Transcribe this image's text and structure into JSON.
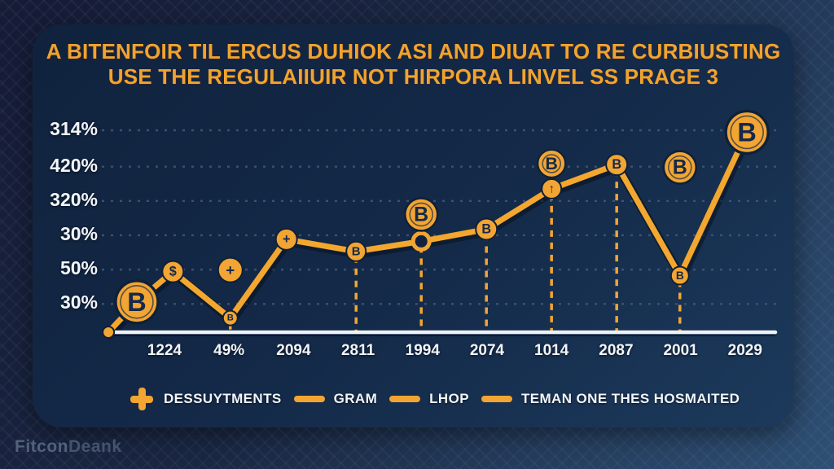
{
  "title": {
    "line1": "A BITENFOIR TIL ERCUS DUHIOK ASI AND DIUAT TO RE CURBIUSTING",
    "line2": "USE THE REGULAIIUIR NOT HIRPORA LINVEL SS PRAGE 3"
  },
  "legend": [
    {
      "icon": "plus-icon",
      "label": "DESSUYTMENTS"
    },
    {
      "icon": "line-dash-icon",
      "label": "GRAM"
    },
    {
      "icon": "line-dash-icon",
      "label": "LHOP"
    },
    {
      "icon": "line-dash-icon",
      "label": "TEMAN ONE THES HOSMAITED"
    }
  ],
  "footer": {
    "brand_bold": "Fitcon",
    "brand_light": "Deank"
  },
  "colors": {
    "accent": "#F2A532",
    "line": "#F4A72E",
    "coin_fill": "#F2A532",
    "coin_edge": "#0F2038",
    "coin_glyph": "#15294A",
    "grid": "#44597A",
    "axis": "#EEF2F7",
    "title_text": "#F0A42D",
    "card_top": "#10223D",
    "card_bottom": "#1C3A5C",
    "background_dark": "#161B36",
    "background_light": "#2E4F73",
    "label_text": "#F2F5FA",
    "footer_text": "#53627C"
  },
  "chart_data": {
    "type": "line",
    "title": "A BITENFOIR TIL ERCUS DUHIOK ASI AND DIUAT TO RE CURBIUSTING USE THE REGULAIIUIR NOT HIRPORA LINVEL SS PRAGE 3",
    "xlabel": "",
    "ylabel": "",
    "grid": true,
    "legend_position": "bottom",
    "categories": [
      "1224",
      "49%",
      "2094",
      "2811",
      "1994",
      "2074",
      "1014",
      "2087",
      "2001",
      "2029"
    ],
    "y_ticks": [
      {
        "label": "314%",
        "v": 1.0
      },
      {
        "label": "420%",
        "v": 0.82
      },
      {
        "label": "320%",
        "v": 0.65
      },
      {
        "label": "30%",
        "v": 0.48
      },
      {
        "label": "50%",
        "v": 0.31
      },
      {
        "label": "30%",
        "v": 0.14
      }
    ],
    "series": [
      {
        "name": "bitcoin-trend-line",
        "points": [
          {
            "xi": -0.87,
            "v": 0.0,
            "marker": "knot",
            "r": 7,
            "glyph": ""
          },
          {
            "xi": -0.43,
            "v": 0.15,
            "marker": "coin",
            "r": 26,
            "glyph": "B"
          },
          {
            "xi": 0.13,
            "v": 0.3,
            "marker": "coin",
            "r": 13,
            "glyph": "$"
          },
          {
            "xi": 1.02,
            "v": 0.07,
            "marker": "coin",
            "r": 9,
            "glyph": "B"
          },
          {
            "xi": 1.89,
            "v": 0.46,
            "marker": "coin",
            "r": 13,
            "glyph": "+"
          },
          {
            "xi": 2.97,
            "v": 0.4,
            "marker": "coin",
            "r": 12,
            "glyph": "B"
          },
          {
            "xi": 3.98,
            "v": 0.45,
            "marker": "ring",
            "r": 10,
            "glyph": ""
          },
          {
            "xi": 4.99,
            "v": 0.51,
            "marker": "coin",
            "r": 13,
            "glyph": "B"
          },
          {
            "xi": 6.0,
            "v": 0.71,
            "marker": "coin",
            "r": 12,
            "glyph": "↑"
          },
          {
            "xi": 7.01,
            "v": 0.83,
            "marker": "coin",
            "r": 13,
            "glyph": "B"
          },
          {
            "xi": 7.99,
            "v": 0.28,
            "marker": "coin",
            "r": 11,
            "glyph": "B"
          },
          {
            "xi": 9.03,
            "v": 0.99,
            "marker": "coin",
            "r": 26,
            "glyph": "B"
          }
        ]
      }
    ],
    "floating_coins": [
      {
        "point": 3,
        "dy": -59,
        "r": 15,
        "glyph": "+"
      },
      {
        "point": 6,
        "dy": -33,
        "r": 20,
        "glyph": "B"
      },
      {
        "point": 8,
        "dy": -31,
        "r": 17,
        "glyph": "B"
      },
      {
        "point": 10,
        "dy": -133,
        "r": 20,
        "glyph": "B"
      }
    ],
    "dashed_vertical_points": [
      3,
      5,
      6,
      7,
      8,
      9,
      10
    ]
  }
}
